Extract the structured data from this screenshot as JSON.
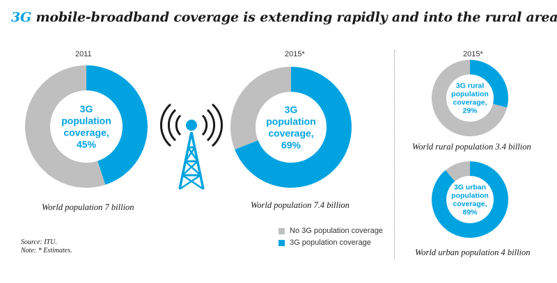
{
  "title": {
    "accent": "3G",
    "rest": " mobile-broadband coverage is extending rapidly and into the rural areas"
  },
  "colors": {
    "blue": "#00a3e0",
    "gray": "#bfbfbf"
  },
  "chart_data": [
    {
      "type": "pie",
      "name": "donut-2011",
      "year": "2011",
      "categories": [
        "3G population coverage",
        "No 3G population coverage"
      ],
      "values": [
        45,
        55
      ],
      "center_lines": [
        "3G",
        "population",
        "coverage,",
        "45%"
      ],
      "caption": "World population 7 billion"
    },
    {
      "type": "pie",
      "name": "donut-2015",
      "year": "2015*",
      "categories": [
        "3G population coverage",
        "No 3G population coverage"
      ],
      "values": [
        69,
        31
      ],
      "center_lines": [
        "3G",
        "population",
        "coverage,",
        "69%"
      ],
      "caption": "World population 7.4 billion"
    },
    {
      "type": "pie",
      "name": "donut-rural-2015",
      "year": "2015*",
      "categories": [
        "3G population coverage",
        "No 3G population coverage"
      ],
      "values": [
        29,
        71
      ],
      "center_lines": [
        "3G rural",
        "population",
        "coverage,",
        "29%"
      ],
      "caption": "World rural population 3.4 billion"
    },
    {
      "type": "pie",
      "name": "donut-urban-2015",
      "year": "",
      "categories": [
        "3G population coverage",
        "No 3G population coverage"
      ],
      "values": [
        89,
        11
      ],
      "center_lines": [
        "3G urban",
        "population",
        "coverage,",
        "89%"
      ],
      "caption": "World urban population 4 billion"
    }
  ],
  "legend": {
    "items": [
      {
        "label": "No 3G population coverage",
        "color": "#bfbfbf"
      },
      {
        "label": "3G population coverage",
        "color": "#00a3e0"
      }
    ]
  },
  "notes": {
    "source": "Source: ITU.",
    "note": "Note: * Estimates."
  }
}
